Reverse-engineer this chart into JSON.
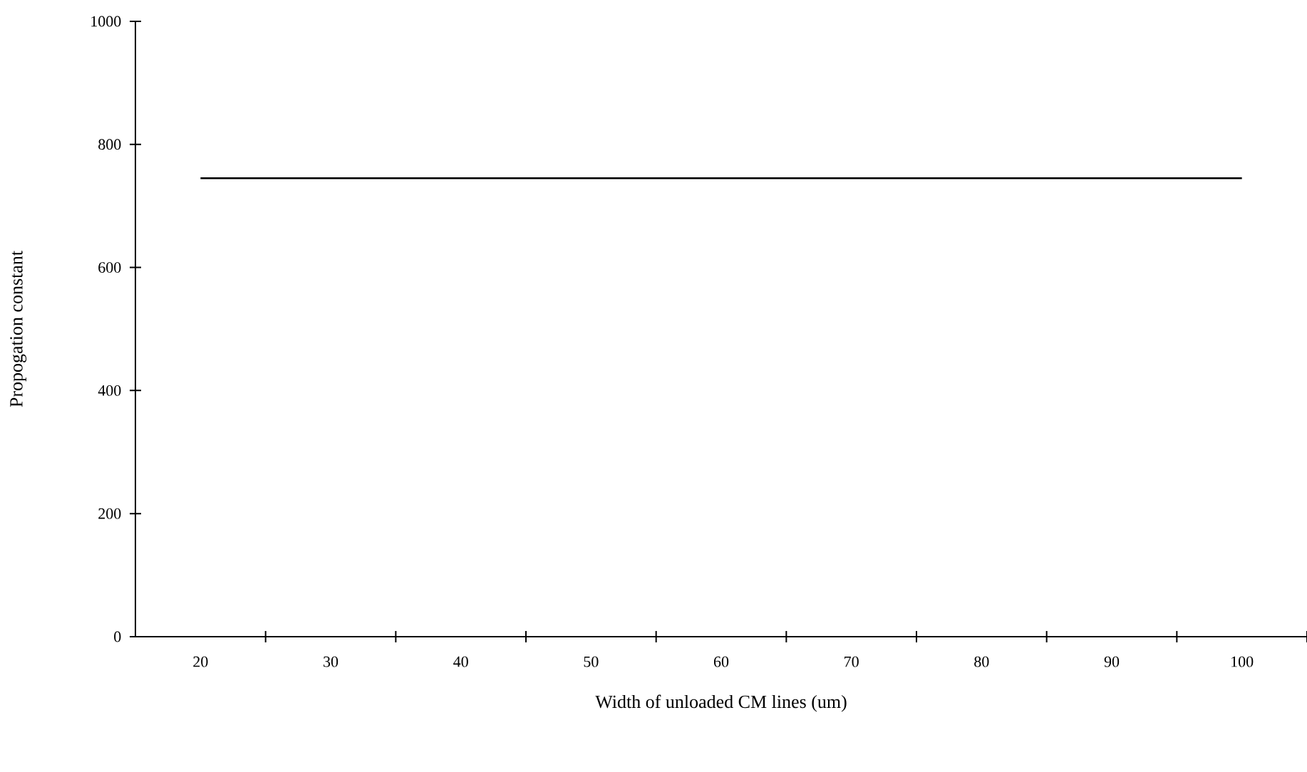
{
  "chart_data": {
    "type": "line",
    "xlabel": "Width of unloaded CM lines (um)",
    "ylabel": "Propogation constant",
    "categories": [
      "20",
      "30",
      "40",
      "50",
      "60",
      "70",
      "80",
      "90",
      "100"
    ],
    "series": [
      {
        "color": "#000000",
        "values": [
          745,
          745,
          745,
          745,
          745,
          745,
          745,
          745,
          745
        ]
      }
    ],
    "ylim": [
      0,
      1000
    ],
    "yticks": [
      0,
      200,
      400,
      600,
      800,
      1000
    ],
    "marker": "none",
    "line_style": "solid"
  }
}
